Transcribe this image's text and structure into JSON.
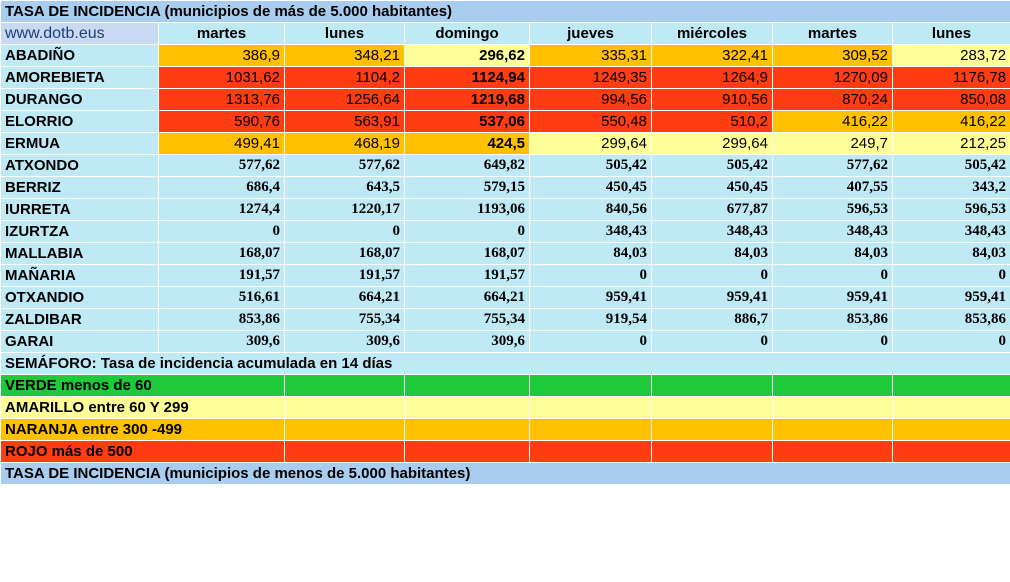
{
  "header_title": "TASA DE INCIDENCIA  (municipios de más de 5.000 habitantes)",
  "site": "www.dotb.eus",
  "days": [
    "martes",
    "lunes",
    "domingo",
    "jueves",
    "miércoles",
    "martes",
    "lunes"
  ],
  "colors": {
    "red": "#ff3c12",
    "orange": "#ffc000",
    "yellow": "#ffff99",
    "green": "#1ec93a",
    "background": "#bfe9f5",
    "header": "#a9cdee"
  },
  "rows": [
    {
      "name": "ABADIÑO",
      "values": [
        "386,9",
        "348,21",
        "296,62",
        "335,31",
        "322,41",
        "309,52",
        "283,72"
      ],
      "colors": [
        "orange",
        "orange",
        "yellow",
        "orange",
        "orange",
        "orange",
        "yellow"
      ]
    },
    {
      "name": "AMOREBIETA",
      "values": [
        "1031,62",
        "1104,2",
        "1124,94",
        "1249,35",
        "1264,9",
        "1270,09",
        "1176,78"
      ],
      "colors": [
        "red",
        "red",
        "red",
        "red",
        "red",
        "red",
        "red"
      ]
    },
    {
      "name": "DURANGO",
      "values": [
        "1313,76",
        "1256,64",
        "1219,68",
        "994,56",
        "910,56",
        "870,24",
        "850,08"
      ],
      "colors": [
        "red",
        "red",
        "red",
        "red",
        "red",
        "red",
        "red"
      ]
    },
    {
      "name": "ELORRIO",
      "values": [
        "590,76",
        "563,91",
        "537,06",
        "550,48",
        "510,2",
        "416,22",
        "416,22"
      ],
      "colors": [
        "red",
        "red",
        "red",
        "red",
        "red",
        "orange",
        "orange"
      ]
    },
    {
      "name": "ERMUA",
      "values": [
        "499,41",
        "468,19",
        "424,5",
        "299,64",
        "299,64",
        "249,7",
        "212,25"
      ],
      "colors": [
        "orange",
        "orange",
        "orange",
        "yellow",
        "yellow",
        "yellow",
        "yellow"
      ]
    },
    {
      "name": "ATXONDO",
      "values": [
        "577,62",
        "577,62",
        "649,82",
        "505,42",
        "505,42",
        "577,62",
        "505,42"
      ]
    },
    {
      "name": "BERRIZ",
      "values": [
        "686,4",
        "643,5",
        "579,15",
        "450,45",
        "450,45",
        "407,55",
        "343,2"
      ]
    },
    {
      "name": "IURRETA",
      "values": [
        "1274,4",
        "1220,17",
        "1193,06",
        "840,56",
        "677,87",
        "596,53",
        "596,53"
      ]
    },
    {
      "name": "IZURTZA",
      "values": [
        "0",
        "0",
        "0",
        "348,43",
        "348,43",
        "348,43",
        "348,43"
      ]
    },
    {
      "name": "MALLABIA",
      "values": [
        "168,07",
        "168,07",
        "168,07",
        "84,03",
        "84,03",
        "84,03",
        "84,03"
      ]
    },
    {
      "name": "MAÑARIA",
      "values": [
        "191,57",
        "191,57",
        "191,57",
        "0",
        "0",
        "0",
        "0"
      ]
    },
    {
      "name": "OTXANDIO",
      "values": [
        "516,61",
        "664,21",
        "664,21",
        "959,41",
        "959,41",
        "959,41",
        "959,41"
      ]
    },
    {
      "name": "ZALDIBAR",
      "values": [
        "853,86",
        "755,34",
        "755,34",
        "919,54",
        "886,7",
        "853,86",
        "853,86"
      ]
    },
    {
      "name": "GARAI",
      "values": [
        "309,6",
        "309,6",
        "309,6",
        "0",
        "0",
        "0",
        "0"
      ]
    }
  ],
  "semaforo": "SEMÁFORO:  Tasa de incidencia acumulada en 14 días",
  "legend": [
    {
      "label": "VERDE menos de 60",
      "color": "green"
    },
    {
      "label": "AMARILLO entre 60 Y 299",
      "color": "yellow"
    },
    {
      "label": "NARANJA entre 300 -499",
      "color": "orange"
    },
    {
      "label": "ROJO más de 500",
      "color": "red"
    }
  ],
  "footer_title": "TASA DE INCIDENCIA  (municipios de menos de 5.000 habitantes)"
}
